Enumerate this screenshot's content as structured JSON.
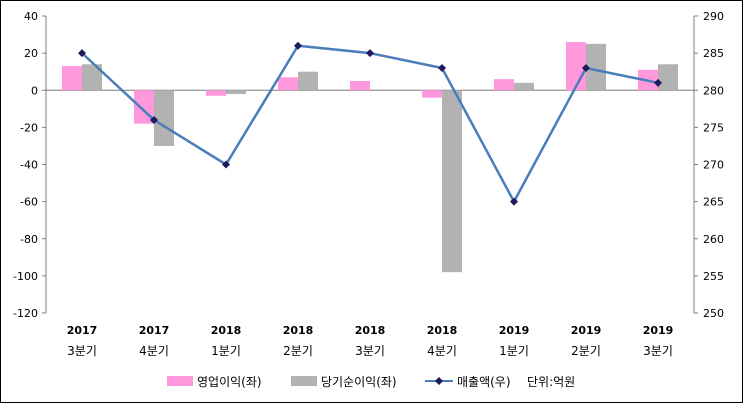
{
  "chart_data": {
    "type": "bar+line",
    "categories": [
      {
        "year": "2017",
        "quarter": "3분기"
      },
      {
        "year": "2017",
        "quarter": "4분기"
      },
      {
        "year": "2018",
        "quarter": "1분기"
      },
      {
        "year": "2018",
        "quarter": "2분기"
      },
      {
        "year": "2018",
        "quarter": "3분기"
      },
      {
        "year": "2018",
        "quarter": "4분기"
      },
      {
        "year": "2019",
        "quarter": "1분기"
      },
      {
        "year": "2019",
        "quarter": "2분기"
      },
      {
        "year": "2019",
        "quarter": "3분기"
      }
    ],
    "series": [
      {
        "name": "영업이익(좌)",
        "type": "bar",
        "axis": "left",
        "color": "#ff99dd",
        "values": [
          13,
          -18,
          -3,
          7,
          5,
          -4,
          6,
          26,
          11
        ]
      },
      {
        "name": "당기순이익(좌)",
        "type": "bar",
        "axis": "left",
        "color": "#b2b2b2",
        "values": [
          14,
          -30,
          -2,
          10,
          0,
          -98,
          4,
          25,
          14
        ]
      },
      {
        "name": "매출액(우)",
        "type": "line",
        "axis": "right",
        "color": "#4a7ebb",
        "marker_color": "#1f1a5e",
        "values": [
          285,
          276,
          270,
          286,
          285,
          283,
          265,
          283,
          281
        ]
      }
    ],
    "unit_note": "단위:억원",
    "y_left": {
      "min": -120,
      "max": 40,
      "ticks": [
        40,
        20,
        0,
        -20,
        -40,
        -60,
        -80,
        -100,
        -120
      ]
    },
    "y_right": {
      "min": 250,
      "max": 290,
      "ticks": [
        290,
        285,
        280,
        275,
        270,
        265,
        260,
        255,
        250
      ]
    },
    "grid": false,
    "legend_position": "bottom"
  }
}
